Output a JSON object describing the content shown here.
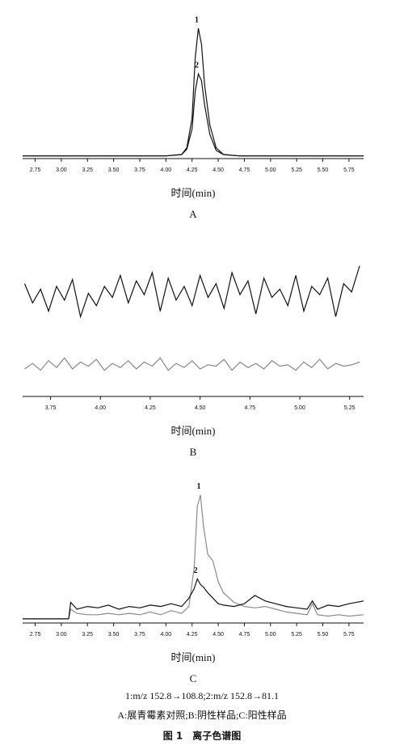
{
  "chart_data": [
    {
      "type": "line",
      "xlabel": "时间(min)",
      "label": "A",
      "x": [
        2.63,
        4.0,
        4.15,
        4.2,
        4.25,
        4.28,
        4.31,
        4.34,
        4.37,
        4.42,
        4.48,
        4.55,
        4.7,
        5.89
      ],
      "series": [
        {
          "name": "1",
          "color": "#111111",
          "values": [
            2,
            2,
            3,
            8,
            30,
            75,
            97,
            85,
            55,
            25,
            8,
            3,
            2,
            2
          ]
        },
        {
          "name": "2",
          "color": "#111111",
          "values": [
            2,
            2,
            3,
            7,
            22,
            50,
            63,
            58,
            40,
            18,
            6,
            3,
            2,
            2
          ]
        }
      ],
      "xlim": [
        2.63,
        5.89
      ],
      "ylim": [
        0,
        100
      ],
      "xticks": [
        2.75,
        {
          "value": 3,
          "label": "3.00"
        },
        3.25,
        {
          "value": 3.5,
          "label": "3.50"
        },
        3.75,
        {
          "value": 4,
          "label": "4.00"
        },
        4.25,
        {
          "value": 4.5,
          "label": "4.50"
        },
        4.75,
        {
          "value": 5,
          "label": "5.00"
        },
        5.25,
        {
          "value": 5.5,
          "label": "5.50"
        },
        5.75
      ]
    },
    {
      "type": "line",
      "xlabel": "时间(min)",
      "label": "B",
      "x": [
        3.62,
        3.66,
        3.7,
        3.74,
        3.78,
        3.82,
        3.86,
        3.9,
        3.94,
        3.98,
        4.02,
        4.06,
        4.1,
        4.14,
        4.18,
        4.22,
        4.26,
        4.3,
        4.34,
        4.38,
        4.42,
        4.46,
        4.5,
        4.54,
        4.58,
        4.62,
        4.66,
        4.7,
        4.74,
        4.78,
        4.82,
        4.86,
        4.9,
        4.94,
        4.98,
        5.02,
        5.06,
        5.1,
        5.14,
        5.18,
        5.22,
        5.26,
        5.3
      ],
      "series": [
        {
          "color": "#111111",
          "values": [
            82,
            68,
            78,
            62,
            80,
            70,
            85,
            58,
            75,
            66,
            80,
            72,
            88,
            68,
            84,
            74,
            90,
            62,
            86,
            70,
            80,
            66,
            88,
            72,
            82,
            64,
            90,
            74,
            84,
            60,
            86,
            72,
            78,
            66,
            88,
            62,
            80,
            74,
            86,
            58,
            82,
            76,
            95
          ]
        },
        {
          "color": "#888888",
          "values": [
            20,
            24,
            19,
            26,
            21,
            28,
            20,
            25,
            22,
            27,
            19,
            24,
            21,
            26,
            20,
            25,
            22,
            28,
            19,
            24,
            21,
            26,
            20,
            23,
            22,
            27,
            19,
            25,
            21,
            24,
            20,
            26,
            22,
            23,
            19,
            25,
            21,
            27,
            20,
            24,
            22,
            23,
            25
          ]
        }
      ],
      "xlim": [
        3.61,
        5.32
      ],
      "ylim": [
        0,
        100
      ],
      "xticks": [
        3.75,
        {
          "value": 4,
          "label": "4.00"
        },
        4.25,
        {
          "value": 4.5,
          "label": "4.50"
        },
        4.75,
        {
          "value": 5,
          "label": "5.00"
        },
        5.25
      ]
    },
    {
      "type": "line",
      "xlabel": "时间(min)",
      "label": "C",
      "x": [
        2.63,
        3.07,
        3.09,
        3.15,
        3.25,
        3.35,
        3.45,
        3.55,
        3.65,
        3.75,
        3.85,
        3.95,
        4.05,
        4.15,
        4.22,
        4.27,
        4.3,
        4.33,
        4.36,
        4.4,
        4.45,
        4.5,
        4.55,
        4.65,
        4.75,
        4.85,
        4.95,
        5.05,
        5.15,
        5.25,
        5.35,
        5.4,
        5.45,
        5.55,
        5.65,
        5.75,
        5.89
      ],
      "series": [
        {
          "name": "1",
          "color": "#8a8a8a",
          "values": [
            3,
            3,
            10,
            7,
            6,
            6,
            7,
            6,
            7,
            6,
            8,
            6,
            9,
            7,
            12,
            40,
            85,
            93,
            70,
            50,
            45,
            30,
            22,
            15,
            12,
            11,
            12,
            10,
            8,
            7,
            6,
            14,
            6,
            5,
            6,
            5,
            6
          ]
        },
        {
          "name": "2",
          "color": "#111111",
          "values": [
            3,
            3,
            15,
            10,
            12,
            11,
            13,
            10,
            12,
            11,
            13,
            12,
            14,
            12,
            18,
            25,
            32,
            28,
            26,
            22,
            18,
            14,
            13,
            12,
            14,
            20,
            16,
            14,
            12,
            11,
            10,
            16,
            10,
            13,
            12,
            14,
            16
          ]
        }
      ],
      "xlim": [
        2.63,
        5.89
      ],
      "ylim": [
        0,
        100
      ],
      "xticks": [
        2.75,
        {
          "value": 3,
          "label": "3.00"
        },
        3.25,
        {
          "value": 3.5,
          "label": "3.50"
        },
        3.75,
        {
          "value": 4,
          "label": "4.00"
        },
        4.25,
        {
          "value": 4.5,
          "label": "4.50"
        },
        4.75,
        {
          "value": 5,
          "label": "5.00"
        },
        5.25,
        {
          "value": 5.5,
          "label": "5.50"
        },
        5.75
      ]
    }
  ],
  "caption": [
    "1:m/z 152.8→108.8;2:m/z 152.8→81.1",
    "A:展青霉素对照;B:阴性样品;C:阳性样品",
    "图 1　离子色谱图"
  ]
}
